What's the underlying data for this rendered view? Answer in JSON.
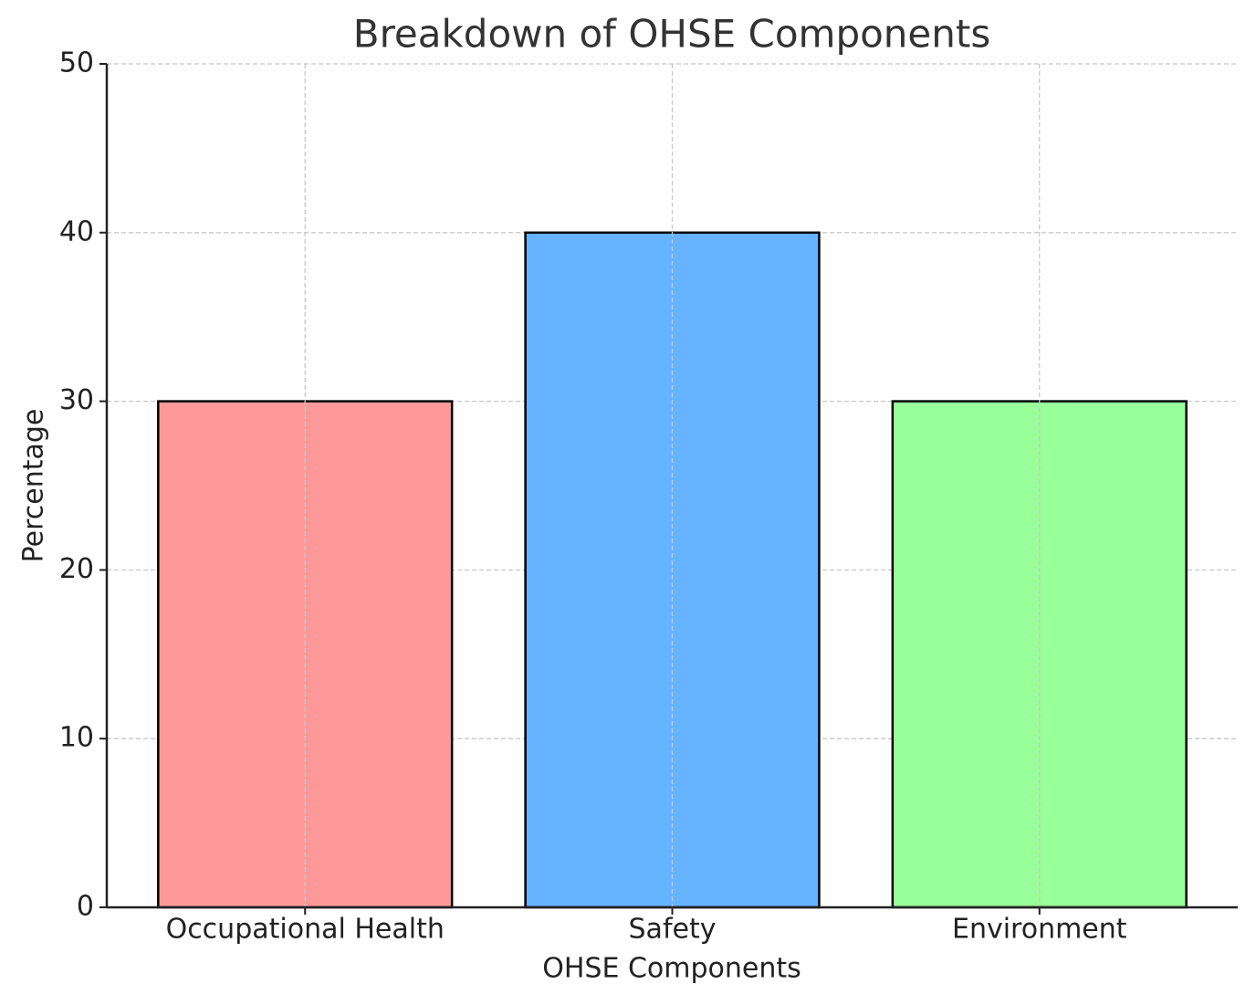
{
  "chart_data": {
    "type": "bar",
    "title": "Breakdown of OHSE Components",
    "x_label": "OHSE Components",
    "y_label": "Percentage",
    "categories": [
      "Occupational Health",
      "Safety",
      "Environment"
    ],
    "values": [
      30,
      40,
      30
    ],
    "colors": [
      "#ff9999",
      "#66b3ff",
      "#99ff99"
    ],
    "edge_color": "#000000",
    "ylim": [
      0,
      50
    ],
    "yticks": [
      0,
      10,
      20,
      30,
      40,
      50
    ],
    "grid": true
  }
}
